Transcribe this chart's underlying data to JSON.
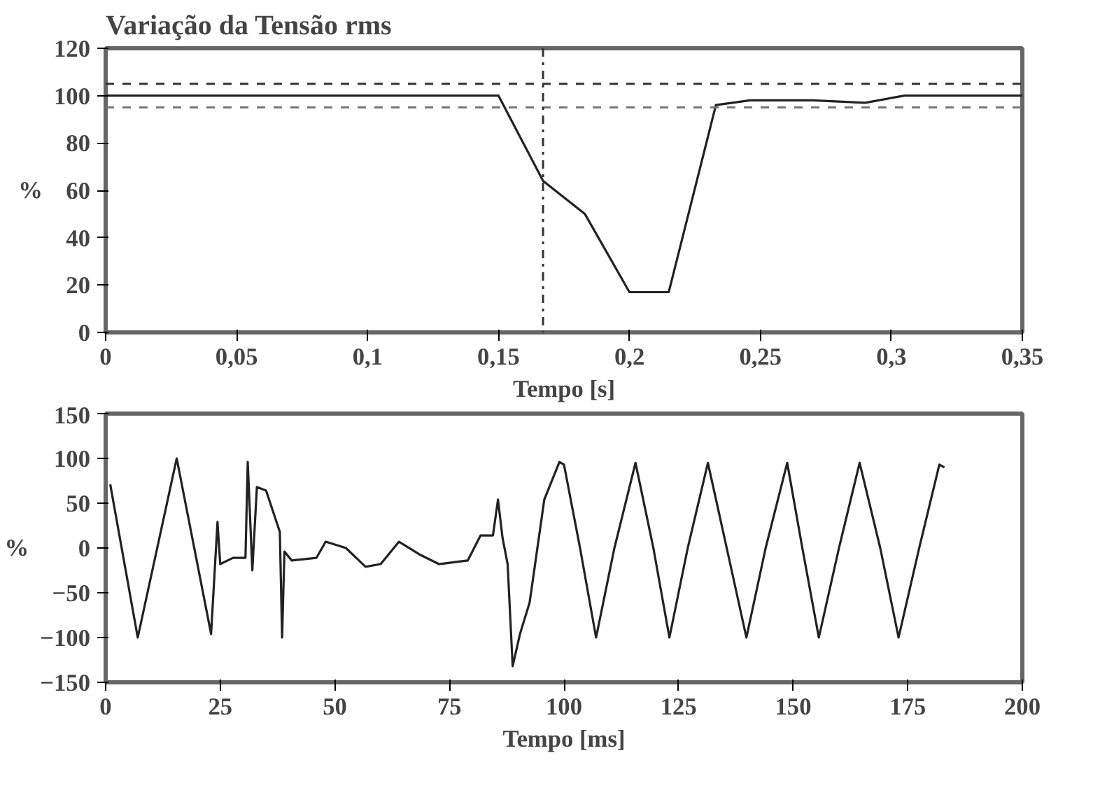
{
  "chart_data": [
    {
      "type": "line",
      "title": "Variação da Tensão rms",
      "xlabel": "Tempo [s]",
      "ylabel": "%",
      "color": "#222222",
      "x": [
        0,
        0.05,
        0.1,
        0.15,
        0.167,
        0.183,
        0.2,
        0.215,
        0.233,
        0.246,
        0.27,
        0.29,
        0.305,
        0.33,
        0.35
      ],
      "values": [
        100,
        100,
        100,
        100,
        64,
        50,
        17,
        17,
        96,
        98,
        98,
        97,
        100,
        100,
        100
      ],
      "xlim": [
        0,
        0.35
      ],
      "ylim": [
        0,
        120
      ],
      "xticks": [
        0,
        {
          "value": 0.05,
          "label": "0,05"
        },
        {
          "value": 0.1,
          "label": "0,1"
        },
        {
          "value": 0.15,
          "label": "0,15"
        },
        {
          "value": 0.2,
          "label": "0,2"
        },
        {
          "value": 0.25,
          "label": "0,25"
        },
        {
          "value": 0.3,
          "label": "0,3"
        },
        {
          "value": 0.35,
          "label": "0,35"
        }
      ],
      "yticks": [
        0,
        20,
        40,
        60,
        80,
        100,
        120
      ],
      "ref_lines": [
        {
          "axis": "y",
          "value": 105,
          "color": "#333333",
          "line_style": "dashed"
        },
        {
          "axis": "y",
          "value": 95,
          "color": "#777777",
          "line_style": "dashed"
        },
        {
          "axis": "x",
          "value": 0.167,
          "color": "#333333",
          "line_style": "dashdot"
        }
      ]
    },
    {
      "type": "line",
      "xlabel": "Tempo [ms]",
      "ylabel": "%",
      "color": "#222222",
      "x": [
        1,
        7,
        15.5,
        23,
        24.4,
        25,
        27.8,
        30.5,
        31,
        32,
        33,
        35,
        38,
        38.5,
        39,
        40.6,
        46,
        48,
        52.4,
        56.7,
        60,
        64,
        68.4,
        72.7,
        79,
        81.8,
        84.5,
        85.6,
        86.6,
        87.7,
        88.8,
        90.4,
        92.5,
        95.7,
        99,
        100,
        103.5,
        107,
        111,
        115.6,
        119.5,
        123,
        127,
        131.4,
        135.5,
        139.8,
        144,
        148.7,
        152,
        155.6,
        160,
        164.5,
        169,
        173,
        177.5,
        181.9,
        183
      ],
      "values": [
        71,
        -100,
        100,
        -96,
        29,
        -18,
        -11,
        -11,
        96,
        -25,
        68,
        64,
        18,
        -100,
        -4,
        -14,
        -11,
        7,
        0,
        -21,
        -18,
        7,
        -7,
        -18,
        -14,
        14,
        14,
        54,
        11,
        -18,
        -132,
        -96,
        -61,
        54,
        96,
        93,
        0,
        -100,
        0,
        95,
        0,
        -100,
        0,
        95,
        0,
        -100,
        0,
        95,
        0,
        -100,
        0,
        95,
        0,
        -100,
        0,
        93,
        90
      ],
      "xlim": [
        0,
        200
      ],
      "ylim": [
        -150,
        150
      ],
      "xticks": [
        0,
        25,
        50,
        75,
        100,
        125,
        150,
        175,
        200
      ],
      "yticks": [
        -150,
        -100,
        -50,
        0,
        50,
        100,
        150
      ]
    }
  ]
}
